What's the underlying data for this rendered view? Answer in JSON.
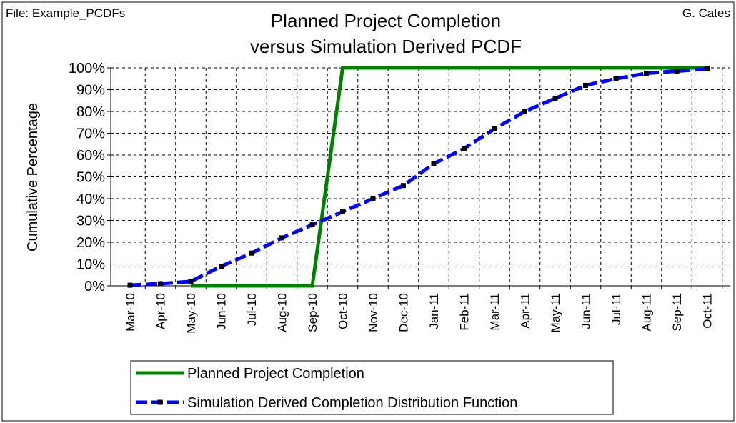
{
  "chart_data": {
    "type": "line",
    "file_label": "File: Example_PCDFs",
    "author": "G. Cates",
    "title": [
      "Planned Project Completion",
      "versus Simulation Derived PCDF"
    ],
    "y_label": "Cumulative Percentage",
    "categories": [
      "Mar-10",
      "Apr-10",
      "May-10",
      "Jun-10",
      "Jul-10",
      "Aug-10",
      "Sep-10",
      "Oct-10",
      "Nov-10",
      "Dec-10",
      "Jan-11",
      "Feb-11",
      "Mar-11",
      "Apr-11",
      "May-11",
      "Jun-11",
      "Jul-11",
      "Aug-11",
      "Sep-11",
      "Oct-11"
    ],
    "series": [
      {
        "name": "Planned Project Completion",
        "color": "#008000",
        "values": [
          null,
          null,
          0,
          0,
          0,
          0,
          0,
          100,
          100,
          100,
          100,
          100,
          100,
          100,
          100,
          100,
          100,
          100,
          100,
          100
        ]
      },
      {
        "name": "Simulation Derived Completion Distribution Function",
        "color": "#0000ff",
        "marker_color": "#000000",
        "values": [
          0.3,
          1,
          2,
          9,
          15,
          22,
          28,
          34,
          40,
          46,
          56,
          63,
          72,
          80,
          86,
          92,
          95,
          97.5,
          98.5,
          99.5
        ]
      }
    ],
    "ylim": [
      0,
      100
    ],
    "yticks": [
      {
        "value": 0,
        "label": "0%"
      },
      {
        "value": 10,
        "label": "10%"
      },
      {
        "value": 20,
        "label": "20%"
      },
      {
        "value": 30,
        "label": "30%"
      },
      {
        "value": 40,
        "label": "40%"
      },
      {
        "value": 50,
        "label": "50%"
      },
      {
        "value": 60,
        "label": "60%"
      },
      {
        "value": 70,
        "label": "70%"
      },
      {
        "value": 80,
        "label": "80%"
      },
      {
        "value": 90,
        "label": "90%"
      },
      {
        "value": 100,
        "label": "100%"
      }
    ],
    "grid": true,
    "legend": "bottom"
  }
}
